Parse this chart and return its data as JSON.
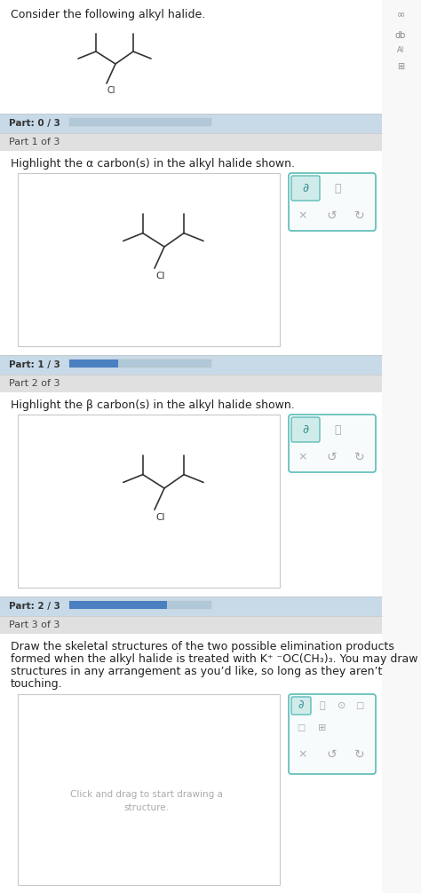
{
  "bg_color": "#f0f0f0",
  "white": "#ffffff",
  "light_gray": "#e0e0e0",
  "section_gray": "#d8d8d8",
  "medium_gray": "#c0c0c0",
  "dark_gray": "#555555",
  "text_color": "#222222",
  "blue_bar": "#4a7fc1",
  "border_color": "#c8c8c8",
  "teal_border": "#5bbcb8",
  "teal_fill": "#eaf6f5",
  "teal_pencil_bg": "#d0ecea",
  "progress_bg": "#c8dae8",
  "title": "Consider the following alkyl halide.",
  "part_0_3": "Part: 0 / 3",
  "part_1_of_3": "Part 1 of 3",
  "part1_question": "Highlight the α carbon(s) in the alkyl halide shown.",
  "part_1_3": "Part: 1 / 3",
  "part_2_of_3": "Part 2 of 3",
  "part2_question": "Highlight the β carbon(s) in the alkyl halide shown.",
  "part_2_3": "Part: 2 / 3",
  "part_3_of_3": "Part 3 of 3",
  "part3_q1": "Draw the skeletal structures of the two possible elimination products",
  "part3_q2": "formed when the alkyl halide is treated with K⁺ ⁻OC(CH₃)₃. You may draw the",
  "part3_q3": "structures in any arrangement as you’d like, so long as they aren’t",
  "part3_q4": "touching.",
  "part3_inner1": "Click and drag to start drawing a",
  "part3_inner2": "structure.",
  "mol_lw": 1.2,
  "mol_color": "#333333",
  "mol_fontsize": 7.0
}
